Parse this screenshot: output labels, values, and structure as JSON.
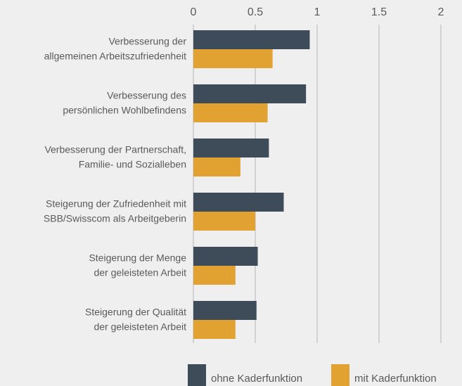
{
  "chart_data": {
    "type": "bar",
    "orientation": "horizontal",
    "categories": [
      "Verbesserung der\nallgemeinen Arbeitszufriedenheit",
      "Verbesserung des\npersönlichen Wohlbefindens",
      "Verbesserung der Partnerschaft,\nFamilie- und Sozialleben",
      "Steigerung der Zufriedenheit mit\nSBB/Swisscom als Arbeitgeberin",
      "Steigerung der Menge\nder geleisteten Arbeit",
      "Steigerung der Qualität\nder geleisteten Arbeit"
    ],
    "series": [
      {
        "name": "ohne Kaderfunktion",
        "color": "#3e4b58",
        "values": [
          0.94,
          0.91,
          0.61,
          0.73,
          0.52,
          0.51
        ]
      },
      {
        "name": "mit Kaderfunktion",
        "color": "#e2a232",
        "values": [
          0.64,
          0.6,
          0.38,
          0.5,
          0.34,
          0.34
        ]
      }
    ],
    "xlim": [
      0,
      2
    ],
    "xticks": [
      0,
      0.5,
      1,
      1.5,
      2
    ],
    "grid": true
  }
}
